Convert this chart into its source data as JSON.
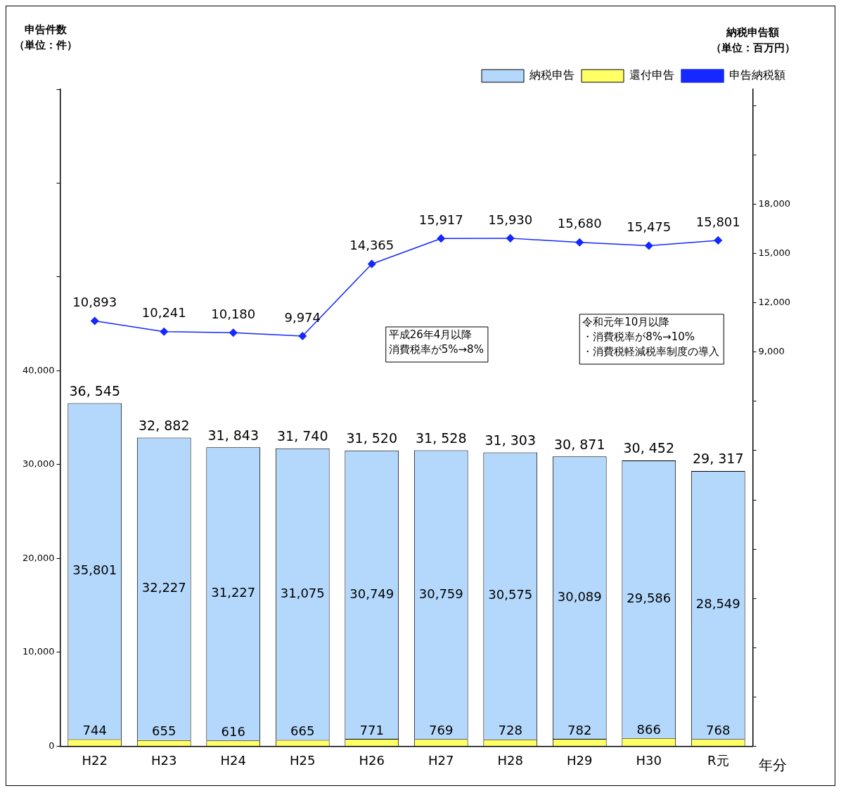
{
  "chart_data": {
    "type": "bar",
    "stacked": true,
    "xlabel": "年分",
    "ylabel": "申告件数（単位：件）",
    "y2label": "納税申告額（単位：百万円）",
    "categories": [
      "H22",
      "H23",
      "H24",
      "H25",
      "H26",
      "H27",
      "H28",
      "H29",
      "H30",
      "R元"
    ],
    "series": [
      {
        "name": "還付申告",
        "color": "#ffff66",
        "values": [
          744,
          655,
          616,
          665,
          771,
          769,
          728,
          782,
          866,
          768
        ],
        "value_labels": [
          "744",
          "655",
          "616",
          "665",
          "771",
          "769",
          "728",
          "782",
          "866",
          "768"
        ]
      },
      {
        "name": "納税申告",
        "color": "#b4d8fc",
        "values": [
          35801,
          32227,
          31227,
          31075,
          30749,
          30759,
          30575,
          30089,
          29586,
          28549
        ],
        "value_labels": [
          "35,801",
          "32,227",
          "31,227",
          "31,075",
          "30,749",
          "30,759",
          "30,575",
          "30,089",
          "29,586",
          "28,549"
        ]
      },
      {
        "name": "申告納税額",
        "type": "line",
        "axis": "y2",
        "color": "#1428ff",
        "marker": "diamond",
        "values": [
          10893,
          10241,
          10180,
          9974,
          14365,
          15917,
          15930,
          15680,
          15475,
          15801
        ],
        "value_labels": [
          "10,893",
          "10,241",
          "10,180",
          "9,974",
          "14,365",
          "15,917",
          "15,930",
          "15,680",
          "15,475",
          "15,801"
        ]
      }
    ],
    "totals": [
      "36, 545",
      "32, 882",
      "31, 843",
      "31, 740",
      "31, 520",
      "31, 528",
      "31, 303",
      "30, 871",
      "30, 452",
      "29, 317"
    ],
    "ylim": [
      0,
      70000
    ],
    "yticks": [
      {
        "value": 0,
        "label": "0"
      },
      {
        "value": 10000,
        "label": "10,000"
      },
      {
        "value": 20000,
        "label": "20,000"
      },
      {
        "value": 30000,
        "label": "30,000"
      },
      {
        "value": 40000,
        "label": "40,000"
      },
      {
        "value": 50000,
        "label": null
      },
      {
        "value": 60000,
        "label": null
      },
      {
        "value": 70000,
        "label": null
      }
    ],
    "y2lim": [
      -15000,
      25000
    ],
    "y2ticks": [
      {
        "value": -15000,
        "label": null
      },
      {
        "value": -12000,
        "label": null
      },
      {
        "value": -9000,
        "label": null
      },
      {
        "value": -6000,
        "label": null
      },
      {
        "value": -3000,
        "label": null
      },
      {
        "value": 0,
        "label": null
      },
      {
        "value": 3000,
        "label": null
      },
      {
        "value": 6000,
        "label": null
      },
      {
        "value": 9000,
        "label": "9,000"
      },
      {
        "value": 12000,
        "label": "12,000"
      },
      {
        "value": 15000,
        "label": "15,000"
      },
      {
        "value": 18000,
        "label": "18,000"
      },
      {
        "value": 21000,
        "label": null
      },
      {
        "value": 24000,
        "label": null
      }
    ],
    "legend": "top right",
    "annotations": [
      "平成26年4月以降",
      "消費税率が5%→8%",
      "令和元年10月以降",
      "・消費税率が8%→10%",
      "・消費税軽減税率制度の導入"
    ]
  }
}
